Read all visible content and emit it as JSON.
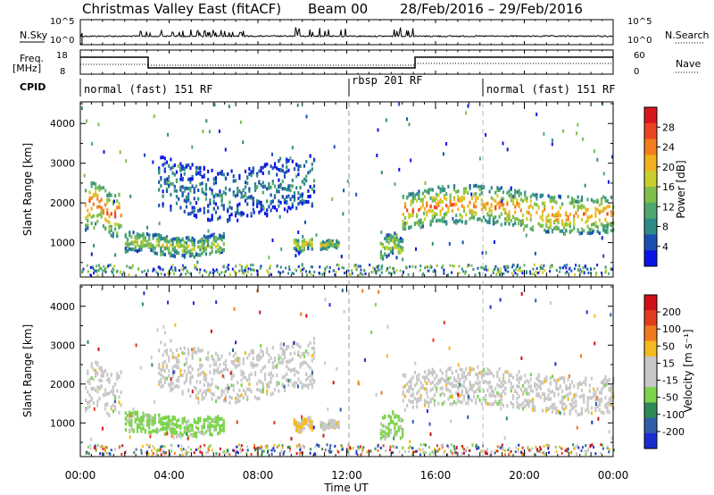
{
  "header": {
    "title_left": "Christmas Valley East (fitACF)",
    "title_beam": "Beam 00",
    "title_date": "28/Feb/2016 – 29/Feb/2016"
  },
  "top_panels": {
    "nsky_label": "N.Sky",
    "nsky_ticks": [
      "10^5",
      "10^0"
    ],
    "nsearch_label": "N.Search",
    "nsearch_ticks": [
      "10^5",
      "10^0"
    ],
    "freq_label": "Freq.",
    "freq_unit": "[MHz]",
    "freq_ticks": [
      "18",
      "8"
    ],
    "nave_label": "Nave",
    "nave_ticks": [
      "60",
      "0"
    ],
    "cpid_label": "CPID",
    "cpid_segments": [
      {
        "label": "normal (fast) 151 RF",
        "start_h": 0,
        "end_h": 12
      },
      {
        "label": "rbsp 201 RF",
        "start_h": 12,
        "end_h": 18
      },
      {
        "label": "normal (fast) 151 RF",
        "start_h": 18,
        "end_h": 24
      }
    ]
  },
  "chart_data": [
    {
      "type": "heatmap",
      "name": "power",
      "ylabel": "Slant Range [km]",
      "yticks": [
        "4000",
        "3000",
        "2000",
        "1000"
      ],
      "ylim": [
        180,
        4500
      ],
      "colorbar_label": "Power [dB]",
      "colorbar_ticks": [
        "28",
        "24",
        "20",
        "16",
        "12",
        "8",
        "4"
      ],
      "colorbar_colors": [
        "#0a14e6",
        "#1c4fb4",
        "#2e8a86",
        "#4fa870",
        "#7fbf4a",
        "#c9cf2d",
        "#f2b21e",
        "#f57e1e",
        "#ee4322",
        "#d8161c"
      ],
      "features": [
        {
          "t0": 0.2,
          "t1": 1.8,
          "r0": 1300,
          "r1": 2400,
          "level": 0.8
        },
        {
          "t0": 2.0,
          "t1": 6.5,
          "r0": 700,
          "r1": 1200,
          "level": 0.55
        },
        {
          "t0": 3.5,
          "t1": 10.5,
          "r0": 1700,
          "r1": 3000,
          "level": 0.25
        },
        {
          "t0": 9.6,
          "t1": 10.4,
          "r0": 800,
          "r1": 1100,
          "level": 0.6
        },
        {
          "t0": 10.8,
          "t1": 11.6,
          "r0": 850,
          "r1": 1050,
          "level": 0.6
        },
        {
          "t0": 13.5,
          "t1": 14.5,
          "r0": 600,
          "r1": 1200,
          "level": 0.55
        },
        {
          "t0": 14.5,
          "t1": 24.0,
          "r0": 1350,
          "r1": 2300,
          "level": 0.75
        }
      ]
    },
    {
      "type": "heatmap",
      "name": "velocity",
      "ylabel": "Slant Range [km]",
      "yticks": [
        "4000",
        "3000",
        "2000",
        "1000"
      ],
      "ylim": [
        180,
        4500
      ],
      "colorbar_label": "Velocity [m s⁻¹]",
      "colorbar_ticks": [
        "200",
        "100",
        "50",
        "15",
        "-15",
        "-50",
        "-100",
        "-200"
      ],
      "colorbar_colors": [
        "#1a2bd1",
        "#2e5fa8",
        "#2d8b5a",
        "#7bd44a",
        "#c8c8c8",
        "#c8c8c8",
        "#f5ba1e",
        "#f07a1e",
        "#e43a1e",
        "#d0101a"
      ],
      "features": [
        {
          "t0": 0.2,
          "t1": 1.8,
          "r0": 1300,
          "r1": 2400,
          "level": "gray"
        },
        {
          "t0": 2.0,
          "t1": 6.5,
          "r0": 700,
          "r1": 1200,
          "level": "green"
        },
        {
          "t0": 3.5,
          "t1": 10.5,
          "r0": 1700,
          "r1": 3000,
          "level": "gray"
        },
        {
          "t0": 9.6,
          "t1": 10.4,
          "r0": 800,
          "r1": 1100,
          "level": "orange"
        },
        {
          "t0": 10.8,
          "t1": 11.6,
          "r0": 850,
          "r1": 1050,
          "level": "gray"
        },
        {
          "t0": 13.5,
          "t1": 14.5,
          "r0": 600,
          "r1": 1200,
          "level": "green"
        },
        {
          "t0": 14.5,
          "t1": 24.0,
          "r0": 1350,
          "r1": 2300,
          "level": "gray"
        }
      ]
    }
  ],
  "xaxis": {
    "ticks": [
      "00:00",
      "04:00",
      "08:00",
      "12:00",
      "16:00",
      "20:00",
      "00:00"
    ],
    "label": "Time UT"
  }
}
